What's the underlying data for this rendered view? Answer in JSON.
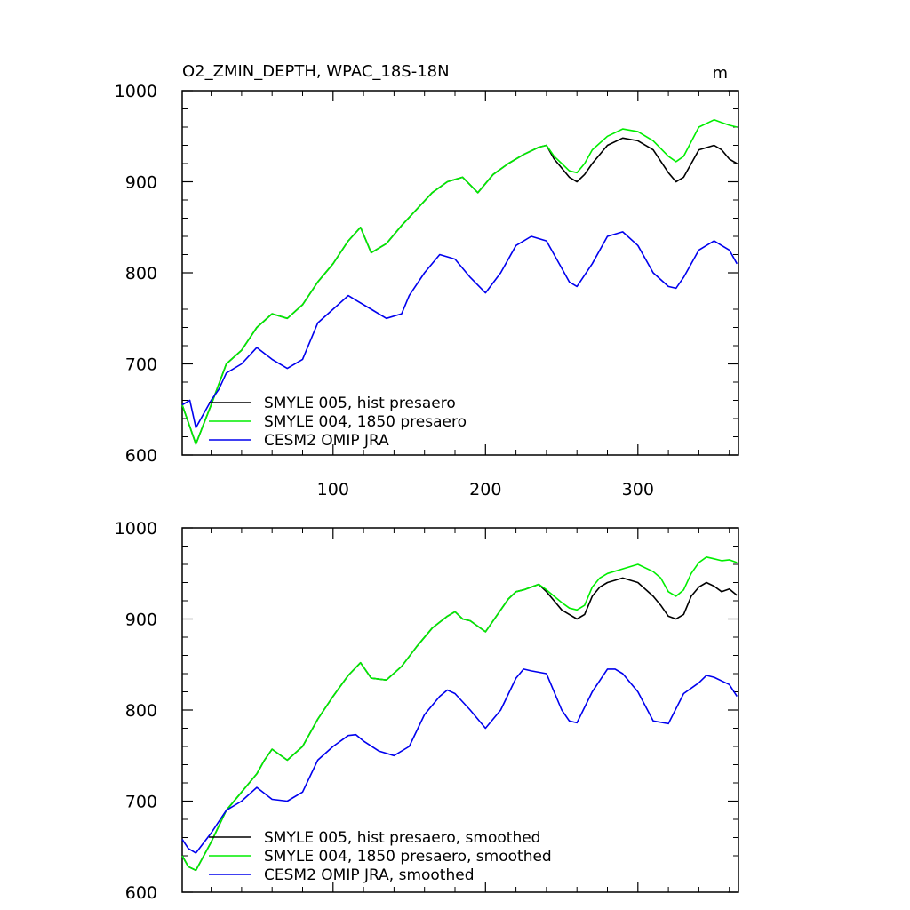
{
  "chart_data": [
    {
      "type": "line",
      "title": "O2_ZMIN_DEPTH, WPAC_18S-18N",
      "units": "m",
      "xlim": [
        1,
        366
      ],
      "ylim": [
        600,
        1000
      ],
      "x_ticks": [
        100,
        200,
        300
      ],
      "y_ticks": [
        600,
        700,
        800,
        900,
        1000
      ],
      "x_tick_labels": [
        "100",
        "200",
        "300"
      ],
      "y_tick_labels": [
        "600",
        "700",
        "800",
        "900",
        "1000"
      ],
      "grid": false,
      "legend_position": "lower-left",
      "series": [
        {
          "name": "SMYLE 005, hist presaero",
          "color": "#000000",
          "x": [
            1,
            10,
            20,
            30,
            40,
            50,
            60,
            70,
            80,
            90,
            100,
            110,
            118,
            125,
            135,
            145,
            155,
            165,
            175,
            185,
            195,
            205,
            215,
            225,
            235,
            240,
            245,
            250,
            255,
            260,
            265,
            270,
            280,
            290,
            300,
            310,
            320,
            325,
            330,
            340,
            350,
            355,
            360,
            365
          ],
          "values": [
            655,
            612,
            655,
            700,
            715,
            740,
            755,
            750,
            765,
            790,
            810,
            835,
            850,
            822,
            832,
            852,
            870,
            888,
            900,
            905,
            888,
            908,
            920,
            930,
            938,
            940,
            925,
            915,
            905,
            900,
            908,
            920,
            940,
            948,
            945,
            935,
            910,
            900,
            905,
            935,
            940,
            935,
            925,
            920
          ]
        },
        {
          "name": "SMYLE 004, 1850 presaero",
          "color": "#00ee00",
          "x": [
            1,
            10,
            20,
            30,
            40,
            50,
            60,
            70,
            80,
            90,
            100,
            110,
            118,
            125,
            135,
            145,
            155,
            165,
            175,
            185,
            195,
            205,
            215,
            225,
            235,
            240,
            245,
            250,
            255,
            260,
            265,
            270,
            280,
            290,
            300,
            310,
            320,
            325,
            330,
            340,
            350,
            355,
            360,
            365
          ],
          "values": [
            655,
            612,
            655,
            700,
            715,
            740,
            755,
            750,
            765,
            790,
            810,
            835,
            850,
            822,
            832,
            852,
            870,
            888,
            900,
            905,
            888,
            908,
            920,
            930,
            938,
            940,
            928,
            920,
            912,
            910,
            920,
            935,
            950,
            958,
            955,
            945,
            928,
            922,
            928,
            960,
            968,
            965,
            962,
            960
          ]
        },
        {
          "name": "CESM2 OMIP JRA",
          "color": "#0000ee",
          "x": [
            1,
            6,
            10,
            20,
            25,
            30,
            40,
            50,
            60,
            70,
            80,
            90,
            100,
            110,
            115,
            125,
            135,
            145,
            150,
            160,
            170,
            180,
            190,
            200,
            210,
            220,
            230,
            240,
            250,
            255,
            260,
            270,
            280,
            290,
            300,
            310,
            320,
            325,
            330,
            340,
            350,
            355,
            360,
            365
          ],
          "values": [
            655,
            660,
            630,
            660,
            672,
            690,
            700,
            718,
            705,
            695,
            705,
            745,
            760,
            775,
            770,
            760,
            750,
            755,
            775,
            800,
            820,
            815,
            795,
            778,
            800,
            830,
            840,
            835,
            805,
            790,
            785,
            810,
            840,
            845,
            830,
            800,
            785,
            783,
            795,
            825,
            835,
            830,
            825,
            810
          ]
        }
      ]
    },
    {
      "type": "line",
      "title": "",
      "xlim": [
        1,
        366
      ],
      "ylim": [
        600,
        1000
      ],
      "x_ticks": [
        100,
        200,
        300
      ],
      "y_ticks": [
        600,
        700,
        800,
        900,
        1000
      ],
      "y_tick_labels": [
        "600",
        "700",
        "800",
        "900",
        "1000"
      ],
      "grid": false,
      "legend_position": "lower-left",
      "series": [
        {
          "name": "SMYLE 005, hist presaero, smoothed",
          "color": "#000000",
          "x": [
            1,
            5,
            10,
            20,
            30,
            40,
            50,
            55,
            60,
            70,
            80,
            90,
            100,
            110,
            118,
            125,
            135,
            145,
            155,
            165,
            175,
            180,
            185,
            190,
            200,
            210,
            215,
            220,
            225,
            235,
            240,
            245,
            250,
            255,
            260,
            265,
            270,
            275,
            280,
            290,
            300,
            310,
            315,
            320,
            325,
            330,
            335,
            340,
            345,
            350,
            355,
            360,
            365
          ],
          "values": [
            640,
            628,
            624,
            655,
            690,
            710,
            730,
            745,
            757,
            745,
            760,
            790,
            815,
            838,
            852,
            835,
            833,
            848,
            870,
            890,
            903,
            908,
            900,
            898,
            886,
            910,
            922,
            930,
            932,
            938,
            930,
            920,
            910,
            905,
            900,
            905,
            925,
            935,
            940,
            945,
            940,
            925,
            915,
            903,
            900,
            905,
            925,
            935,
            940,
            936,
            930,
            933,
            926
          ]
        },
        {
          "name": "SMYLE 004, 1850 presaero, smoothed",
          "color": "#00ee00",
          "x": [
            1,
            5,
            10,
            20,
            30,
            40,
            50,
            55,
            60,
            70,
            80,
            90,
            100,
            110,
            118,
            125,
            135,
            145,
            155,
            165,
            175,
            180,
            185,
            190,
            200,
            210,
            215,
            220,
            225,
            235,
            240,
            245,
            250,
            255,
            260,
            265,
            270,
            275,
            280,
            290,
            300,
            310,
            315,
            320,
            325,
            330,
            335,
            340,
            345,
            350,
            355,
            360,
            365
          ],
          "values": [
            640,
            628,
            624,
            655,
            690,
            710,
            730,
            745,
            757,
            745,
            760,
            790,
            815,
            838,
            852,
            835,
            833,
            848,
            870,
            890,
            903,
            908,
            900,
            898,
            886,
            910,
            922,
            930,
            932,
            938,
            932,
            925,
            918,
            912,
            910,
            915,
            935,
            945,
            950,
            955,
            960,
            952,
            945,
            930,
            925,
            932,
            950,
            962,
            968,
            966,
            964,
            965,
            962
          ]
        },
        {
          "name": "CESM2 OMIP JRA, smoothed",
          "color": "#0000ee",
          "x": [
            1,
            5,
            10,
            20,
            30,
            40,
            50,
            60,
            70,
            80,
            90,
            100,
            110,
            115,
            120,
            130,
            140,
            150,
            160,
            170,
            175,
            180,
            190,
            200,
            210,
            220,
            225,
            230,
            240,
            250,
            255,
            260,
            270,
            280,
            285,
            290,
            300,
            310,
            320,
            330,
            340,
            345,
            350,
            355,
            360,
            365
          ],
          "values": [
            658,
            648,
            643,
            665,
            690,
            700,
            715,
            702,
            700,
            710,
            745,
            760,
            772,
            773,
            766,
            755,
            750,
            760,
            795,
            815,
            822,
            818,
            800,
            780,
            800,
            835,
            845,
            843,
            840,
            800,
            788,
            786,
            820,
            845,
            845,
            840,
            820,
            788,
            785,
            818,
            830,
            838,
            836,
            832,
            828,
            815
          ]
        }
      ]
    }
  ]
}
